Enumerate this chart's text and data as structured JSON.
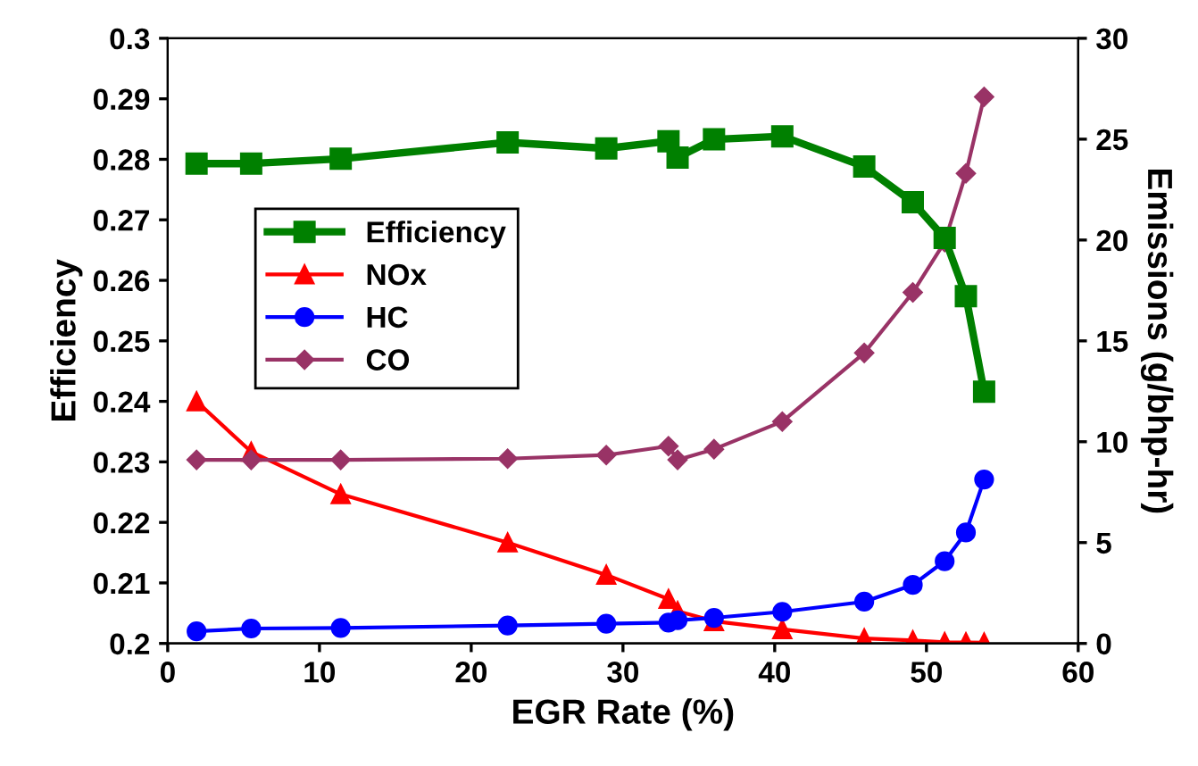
{
  "chart_data": {
    "type": "line",
    "xlabel": "EGR Rate (%)",
    "ylabel": "Efficiency",
    "y2label": "Emissions (g/bhp-hr)",
    "x": [
      1.9,
      5.5,
      11.4,
      22.4,
      28.9,
      33.0,
      33.6,
      36.0,
      40.5,
      45.9,
      49.1,
      51.2,
      52.6,
      53.8
    ],
    "series": [
      {
        "name": "Efficiency",
        "color": "#008000",
        "marker": "square",
        "values": [
          0.2793,
          0.2793,
          0.2801,
          0.2828,
          0.2818,
          0.283,
          0.2803,
          0.2833,
          0.2838,
          0.2788,
          0.2729,
          0.267,
          0.2574,
          0.2416
        ]
      },
      {
        "name": "NOx",
        "color": "#ff0000",
        "marker": "triangle",
        "axis": "y2",
        "values": [
          12.0,
          9.5,
          7.4,
          5.0,
          3.4,
          2.2,
          1.6,
          1.1,
          0.7,
          0.25,
          0.15,
          0.06,
          0.05,
          0.04
        ]
      },
      {
        "name": "HC",
        "color": "#0000ff",
        "marker": "circle",
        "axis": "y2",
        "values": [
          0.6,
          0.74,
          0.77,
          0.89,
          0.98,
          1.03,
          1.15,
          1.27,
          1.57,
          2.07,
          2.9,
          4.08,
          5.5,
          8.13
        ]
      },
      {
        "name": "CO",
        "color": "#993366",
        "marker": "diamond",
        "axis": "y2",
        "values": [
          9.1,
          9.1,
          9.1,
          9.16,
          9.34,
          9.78,
          9.1,
          9.63,
          11.0,
          14.4,
          17.4,
          19.9,
          23.3,
          27.1
        ]
      }
    ],
    "xlim": [
      0,
      60
    ],
    "xticks": [
      0,
      10,
      20,
      30,
      40,
      50,
      60
    ],
    "ylim": [
      0.2,
      0.3
    ],
    "yticks": [
      0.2,
      0.21,
      0.22,
      0.23,
      0.24,
      0.25,
      0.26,
      0.27,
      0.28,
      0.29,
      0.3
    ],
    "y2lim": [
      0,
      30
    ],
    "y2ticks": [
      0,
      5,
      10,
      15,
      20,
      25,
      30
    ],
    "legend": "left",
    "grid": false
  }
}
